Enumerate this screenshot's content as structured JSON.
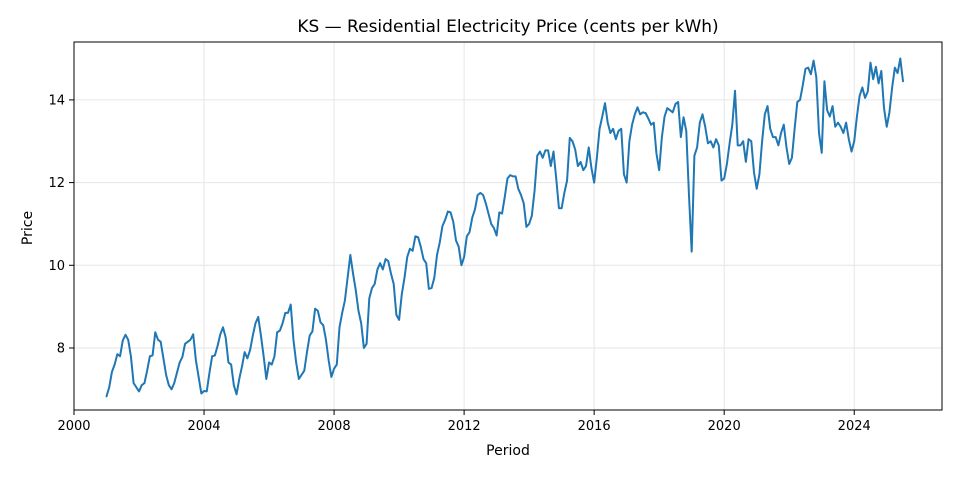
{
  "chart_data": {
    "type": "line",
    "title": "KS — Residential Electricity Price (cents per kWh)",
    "xlabel": "Period",
    "ylabel": "Price",
    "xlim": [
      2000.0,
      2026.7
    ],
    "ylim": [
      6.5,
      15.4
    ],
    "x_ticks": [
      2000,
      2004,
      2008,
      2012,
      2016,
      2020,
      2024
    ],
    "x_tick_labels": [
      "2000",
      "2004",
      "2008",
      "2012",
      "2016",
      "2020",
      "2024"
    ],
    "y_ticks": [
      8,
      10,
      12,
      14
    ],
    "y_tick_labels": [
      "8",
      "10",
      "12",
      "14"
    ],
    "grid": true,
    "legend": "none",
    "line_color": "#1f77b4",
    "x_start": 2001.0,
    "x_step_months": 1,
    "series": [
      {
        "values": [
          6.83,
          7.05,
          7.42,
          7.6,
          7.85,
          7.8,
          8.18,
          8.32,
          8.2,
          7.8,
          7.15,
          7.05,
          6.95,
          7.1,
          7.15,
          7.45,
          7.8,
          7.82,
          8.38,
          8.2,
          8.15,
          7.75,
          7.35,
          7.1,
          7.0,
          7.15,
          7.4,
          7.65,
          7.78,
          8.1,
          8.15,
          8.2,
          8.33,
          7.7,
          7.3,
          6.9,
          6.96,
          6.95,
          7.4,
          7.8,
          7.82,
          8.05,
          8.33,
          8.5,
          8.25,
          7.65,
          7.6,
          7.1,
          6.88,
          7.25,
          7.55,
          7.9,
          7.75,
          7.95,
          8.3,
          8.6,
          8.75,
          8.3,
          7.8,
          7.25,
          7.65,
          7.6,
          7.8,
          8.38,
          8.42,
          8.6,
          8.85,
          8.85,
          9.05,
          8.2,
          7.65,
          7.25,
          7.35,
          7.45,
          7.9,
          8.3,
          8.4,
          8.95,
          8.9,
          8.62,
          8.55,
          8.2,
          7.7,
          7.3,
          7.5,
          7.6,
          8.5,
          8.85,
          9.15,
          9.7,
          10.25,
          9.8,
          9.4,
          8.9,
          8.6,
          8.0,
          8.1,
          9.2,
          9.45,
          9.55,
          9.9,
          10.05,
          9.9,
          10.15,
          10.1,
          9.8,
          9.55,
          8.8,
          8.68,
          9.3,
          9.7,
          10.2,
          10.4,
          10.35,
          10.7,
          10.68,
          10.45,
          10.15,
          10.05,
          9.43,
          9.45,
          9.7,
          10.25,
          10.55,
          10.95,
          11.1,
          11.3,
          11.28,
          11.05,
          10.6,
          10.45,
          10.0,
          10.2,
          10.7,
          10.8,
          11.15,
          11.35,
          11.7,
          11.75,
          11.7,
          11.5,
          11.25,
          11.0,
          10.9,
          10.72,
          11.28,
          11.25,
          11.65,
          12.1,
          12.18,
          12.15,
          12.15,
          11.85,
          11.7,
          11.5,
          10.93,
          11.0,
          11.2,
          11.8,
          12.65,
          12.75,
          12.6,
          12.78,
          12.78,
          12.4,
          12.75,
          12.1,
          11.38,
          11.38,
          11.75,
          12.05,
          13.08,
          13.0,
          12.8,
          12.4,
          12.5,
          12.3,
          12.4,
          12.85,
          12.35,
          12.0,
          12.6,
          13.3,
          13.6,
          13.92,
          13.45,
          13.2,
          13.3,
          13.05,
          13.25,
          13.3,
          12.2,
          12.0,
          13.0,
          13.4,
          13.65,
          13.82,
          13.65,
          13.7,
          13.68,
          13.55,
          13.4,
          13.45,
          12.7,
          12.3,
          13.1,
          13.6,
          13.8,
          13.75,
          13.7,
          13.9,
          13.95,
          13.1,
          13.58,
          13.25,
          11.7,
          10.33,
          12.65,
          12.85,
          13.45,
          13.65,
          13.35,
          12.95,
          13.0,
          12.85,
          13.05,
          12.9,
          12.05,
          12.1,
          12.45,
          12.95,
          13.4,
          14.22,
          12.9,
          12.9,
          13.0,
          12.5,
          13.05,
          13.0,
          12.25,
          11.85,
          12.2,
          13.0,
          13.65,
          13.85,
          13.3,
          13.1,
          13.1,
          12.9,
          13.2,
          13.4,
          12.85,
          12.45,
          12.6,
          13.3,
          13.95,
          14.0,
          14.35,
          14.75,
          14.78,
          14.62,
          14.95,
          14.55,
          13.2,
          12.72,
          14.45,
          13.75,
          13.6,
          13.85,
          13.35,
          13.45,
          13.35,
          13.2,
          13.45,
          13.05,
          12.75,
          13.0,
          13.6,
          14.1,
          14.3,
          14.05,
          14.2,
          14.9,
          14.5,
          14.8,
          14.4,
          14.7,
          13.8,
          13.35,
          13.7,
          14.3,
          14.78,
          14.65,
          15.0,
          14.45
        ]
      }
    ]
  }
}
